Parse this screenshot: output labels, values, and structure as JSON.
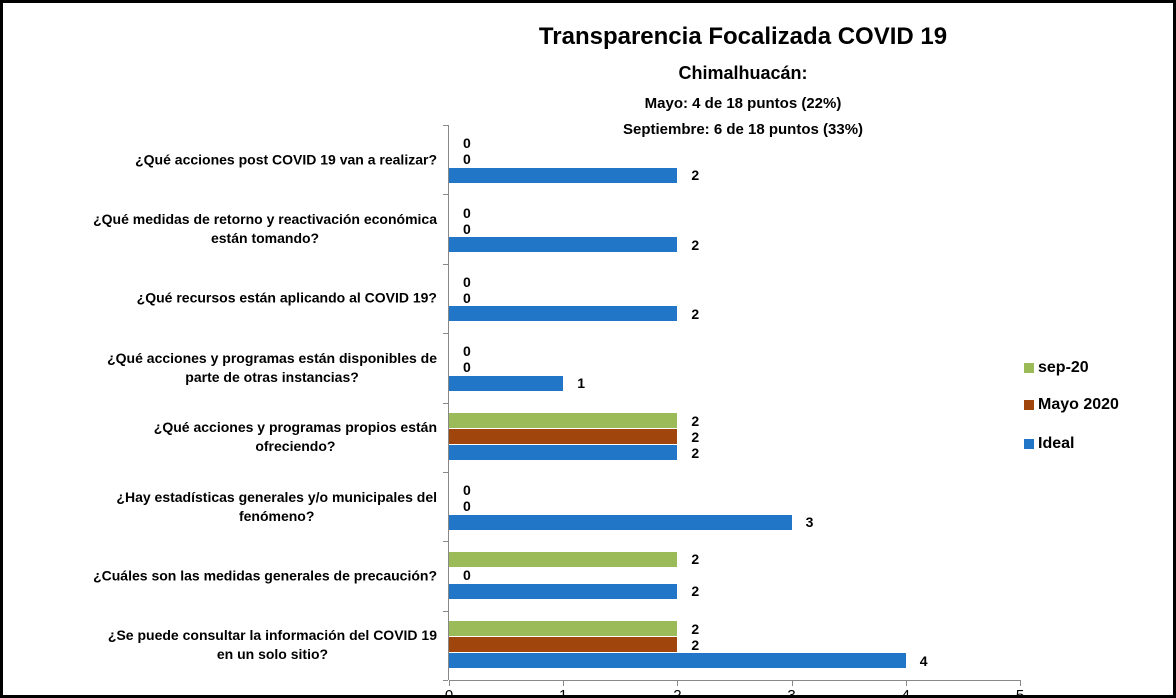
{
  "chart_data": {
    "type": "bar",
    "orientation": "horizontal",
    "title": "Transparencia Focalizada COVID 19",
    "subtitle": "Chimalhuacán:",
    "annotations": [
      "Mayo: 4 de 18 puntos (22%)",
      "Septiembre: 6 de 18 puntos (33%)"
    ],
    "categories": [
      "¿Qué acciones post COVID 19 van a realizar?",
      "¿Qué medidas de retorno y reactivación económica\nestán tomando?",
      "¿Qué recursos están aplicando al COVID 19?",
      "¿Qué acciones y programas están disponibles de\nparte de otras instancias?",
      "¿Qué acciones y programas propios están\nofreciendo?",
      "¿Hay estadísticas generales y/o municipales del\nfenómeno?",
      "¿Cuáles son las medidas generales de precaución?",
      "¿Se puede consultar la información del COVID 19\nen un solo sitio?"
    ],
    "series": [
      {
        "name": "sep-20",
        "color": "#9bbb59",
        "values": [
          0,
          0,
          0,
          0,
          2,
          0,
          2,
          2
        ]
      },
      {
        "name": "Mayo 2020",
        "color": "#a0460c",
        "values": [
          0,
          0,
          0,
          0,
          2,
          0,
          0,
          2
        ]
      },
      {
        "name": "Ideal",
        "color": "#2176c7",
        "values": [
          2,
          2,
          2,
          1,
          2,
          3,
          2,
          4
        ]
      }
    ],
    "xlim": [
      0,
      5
    ],
    "xticks": [
      0,
      1,
      2,
      3,
      4,
      5
    ],
    "legend": "right"
  }
}
